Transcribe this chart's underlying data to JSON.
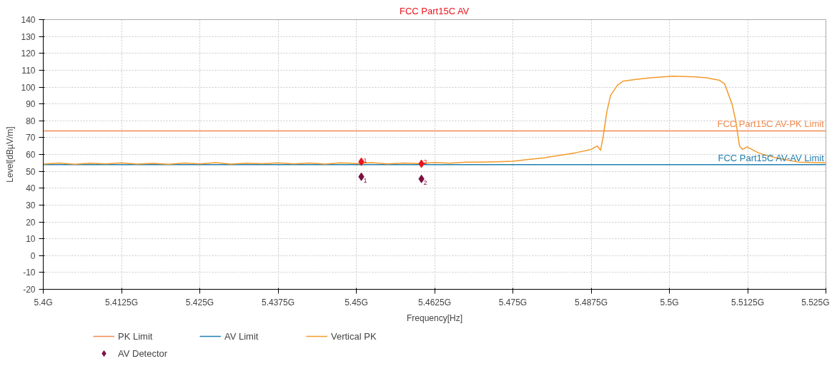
{
  "chart_data": {
    "type": "line",
    "title": "FCC Part15C AV",
    "xlabel": "Frequency[Hz]",
    "ylabel": "Level[dBµV/m]",
    "xlim": [
      5.4,
      5.525
    ],
    "xticks": [
      {
        "value": 5.4,
        "label": "5.4G"
      },
      {
        "value": 5.4125,
        "label": "5.4125G"
      },
      {
        "value": 5.425,
        "label": "5.425G"
      },
      {
        "value": 5.4375,
        "label": "5.4375G"
      },
      {
        "value": 5.45,
        "label": "5.45G"
      },
      {
        "value": 5.4625,
        "label": "5.4625G"
      },
      {
        "value": 5.475,
        "label": "5.475G"
      },
      {
        "value": 5.4875,
        "label": "5.4875G"
      },
      {
        "value": 5.5,
        "label": "5.5G"
      },
      {
        "value": 5.5125,
        "label": "5.5125G"
      },
      {
        "value": 5.525,
        "label": "5.525G"
      }
    ],
    "ylim": [
      -20,
      140
    ],
    "yticks": [
      -20,
      -10,
      0,
      10,
      20,
      30,
      40,
      50,
      60,
      70,
      80,
      90,
      100,
      110,
      120,
      130,
      140
    ],
    "grid": true,
    "legend": "bottom",
    "series": [
      {
        "name": "PK Limit",
        "color": "#f08a50",
        "x": [
          5.4,
          5.525
        ],
        "values": [
          74,
          74
        ]
      },
      {
        "name": "AV Limit",
        "color": "#1f7fb0",
        "x": [
          5.4,
          5.525
        ],
        "values": [
          54,
          54
        ]
      },
      {
        "name": "Vertical PK",
        "color": "#f39a2a",
        "x": [
          5.4,
          5.4025,
          5.405,
          5.4075,
          5.41,
          5.4125,
          5.415,
          5.4175,
          5.42,
          5.4225,
          5.425,
          5.4275,
          5.43,
          5.4325,
          5.435,
          5.4375,
          5.44,
          5.4425,
          5.445,
          5.4475,
          5.45,
          5.4525,
          5.455,
          5.4575,
          5.46,
          5.4625,
          5.465,
          5.4675,
          5.47,
          5.4725,
          5.475,
          5.4775,
          5.48,
          5.4825,
          5.485,
          5.4875,
          5.4885,
          5.489,
          5.4894,
          5.49,
          5.4906,
          5.4917,
          5.4926,
          5.4947,
          5.497,
          5.5006,
          5.5041,
          5.5059,
          5.508,
          5.5088,
          5.51,
          5.5106,
          5.5112,
          5.5117,
          5.5124,
          5.5142,
          5.5159,
          5.5183,
          5.5206,
          5.525
        ],
        "values": [
          54.3,
          54.9,
          54.2,
          54.8,
          54.4,
          55.0,
          54.3,
          54.7,
          54.2,
          54.9,
          54.4,
          55.1,
          54.3,
          54.8,
          54.5,
          55.0,
          54.4,
          54.9,
          54.3,
          55.0,
          54.6,
          55.1,
          54.4,
          54.9,
          54.6,
          55.2,
          54.8,
          55.4,
          55.5,
          55.7,
          56,
          57,
          58,
          59.5,
          61,
          63,
          65,
          62.5,
          70,
          85,
          95,
          101,
          103.5,
          104.5,
          105.5,
          106.5,
          106,
          105.5,
          104,
          102,
          90,
          80,
          65,
          63,
          64.5,
          61,
          59,
          57,
          55.5,
          55
        ]
      },
      {
        "type": "scatter",
        "marker": "diamond",
        "color": "#e8141c",
        "x": [
          5.4508,
          5.4604
        ],
        "values": [
          55.7,
          54.5
        ]
      },
      {
        "name": "AV Detector",
        "type": "scatter",
        "marker": "diamond",
        "color": "#7b1040",
        "x": [
          5.4508,
          5.4604
        ],
        "values": [
          46.8,
          45.5
        ]
      }
    ],
    "annotations": [
      {
        "text": "FCC Part15C AV-PK Limit",
        "x": 5.525,
        "y": 74
      },
      {
        "text": "FCC Part15C AV-AV Limit",
        "x": 5.525,
        "y": 54
      },
      {
        "text": "1",
        "x": 5.4508,
        "y": 56.5
      },
      {
        "text": "2",
        "x": 5.4604,
        "y": 55.5
      },
      {
        "text": "1",
        "x": 5.4508,
        "y": 44.5
      },
      {
        "text": "2",
        "x": 5.4604,
        "y": 43.3
      }
    ]
  }
}
